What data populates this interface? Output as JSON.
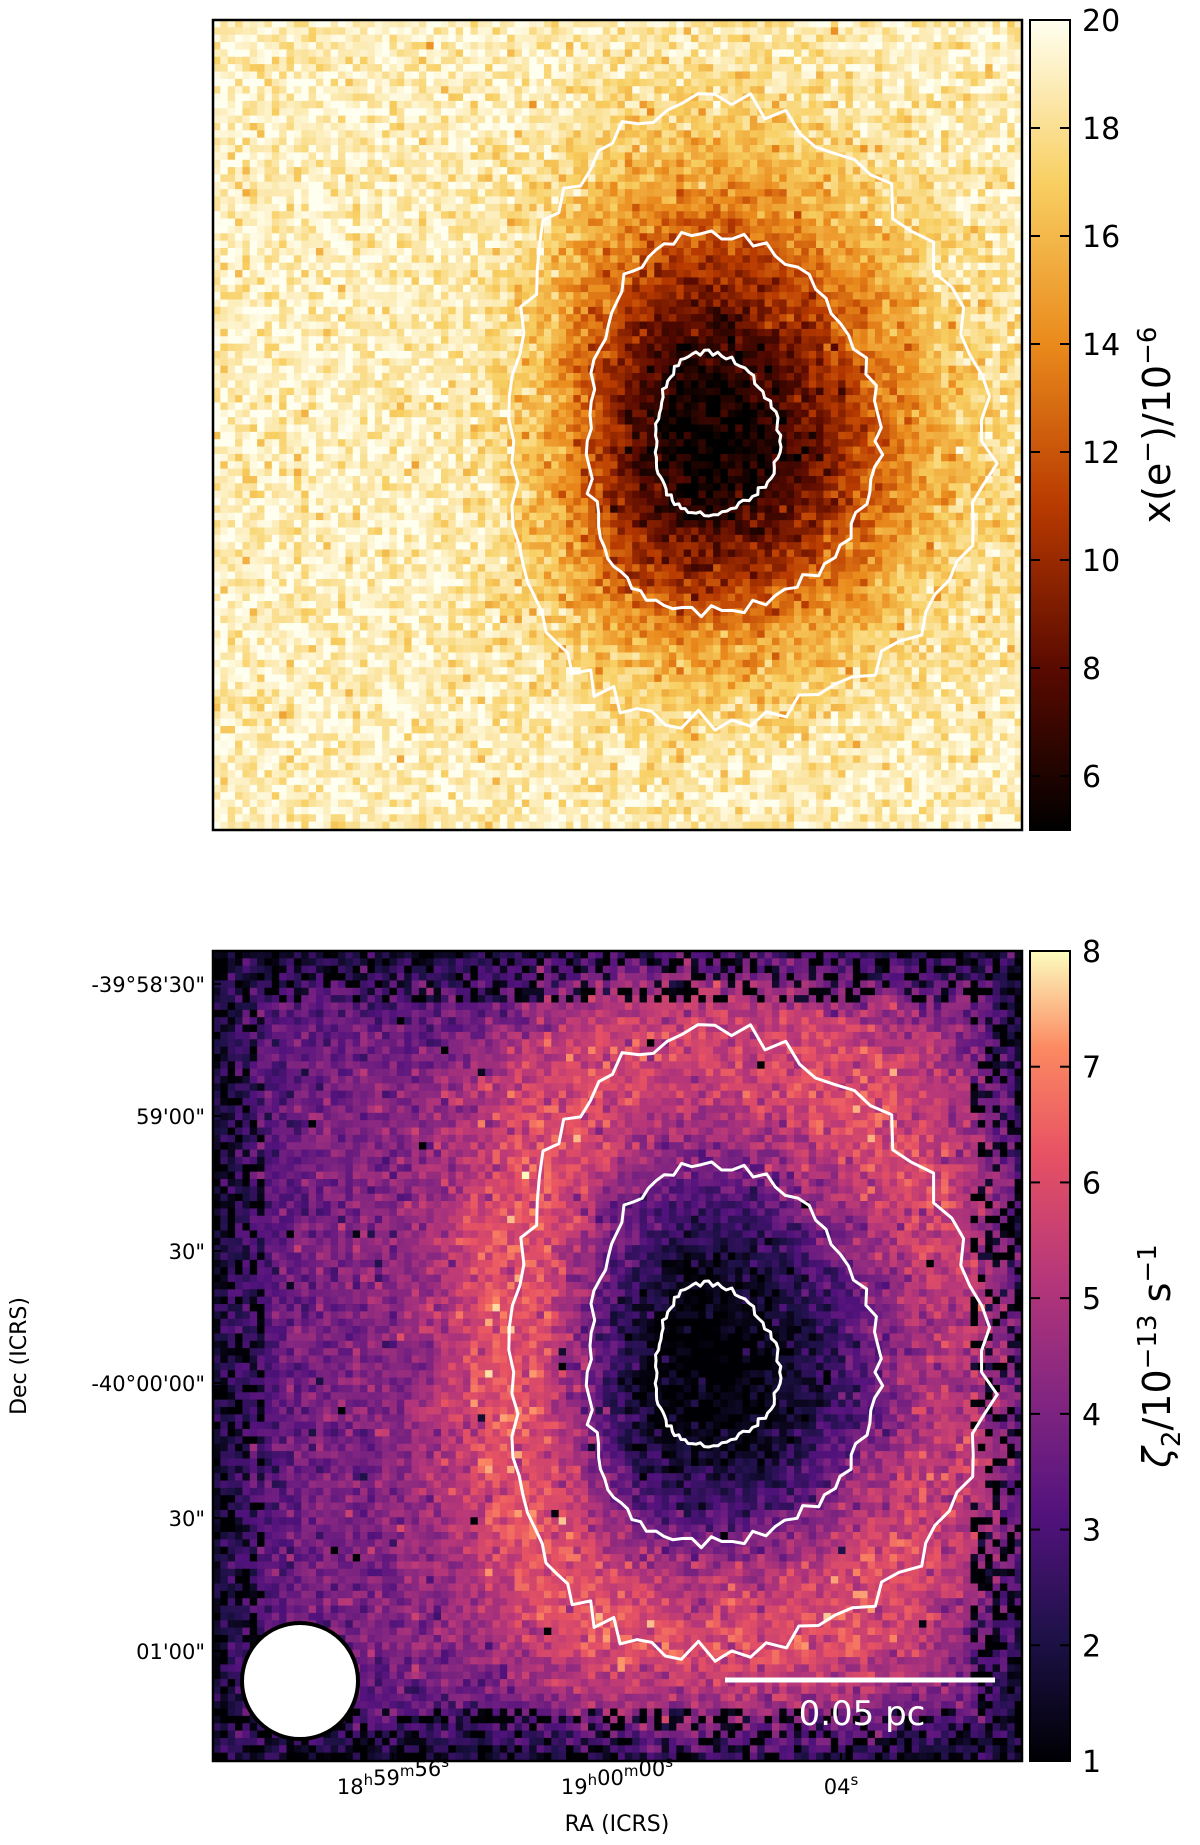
{
  "chart_data": [
    {
      "type": "heatmap",
      "panel": "top",
      "colormap": "afmhot",
      "colorbar": {
        "label_main": "x(e",
        "label_sup1": "−",
        "label_mid": ")/10",
        "label_sup2": "−6",
        "range": [
          5,
          20
        ],
        "ticks": [
          "6",
          "8",
          "10",
          "12",
          "14",
          "16",
          "18",
          "20"
        ]
      },
      "features": {
        "core_value_min": 5,
        "background_value": 19,
        "contours": "white, 3 levels"
      }
    },
    {
      "type": "heatmap",
      "panel": "bottom",
      "colormap": "magma",
      "colorbar": {
        "label_main": "ζ",
        "label_sub": "2",
        "label_mid": "/10",
        "label_sup": "−13",
        "label_unit": " s",
        "label_unit_sup": "−1",
        "range": [
          1,
          8
        ],
        "ticks": [
          "1",
          "2",
          "3",
          "4",
          "5",
          "6",
          "7",
          "8"
        ]
      },
      "axes": {
        "xlabel": "RA (ICRS)",
        "ylabel": "Dec (ICRS)",
        "xticks": [
          {
            "h": "18",
            "m": "59",
            "s": "56",
            "full": true
          },
          {
            "h": "19",
            "m": "00",
            "s": "00",
            "full": true
          },
          {
            "h": "",
            "m": "",
            "s": "04",
            "full": false
          }
        ],
        "yticks": [
          "-39°58'30\"",
          "59'00\"",
          "30\"",
          "-40°00'00\"",
          "30\"",
          "01'00\""
        ]
      },
      "scalebar": {
        "label": "0.05 pc"
      },
      "beam": "circle, lower-left",
      "features": {
        "core_value_min": 1,
        "ring_value_max": 7,
        "contours": "white, 3 levels"
      }
    }
  ]
}
